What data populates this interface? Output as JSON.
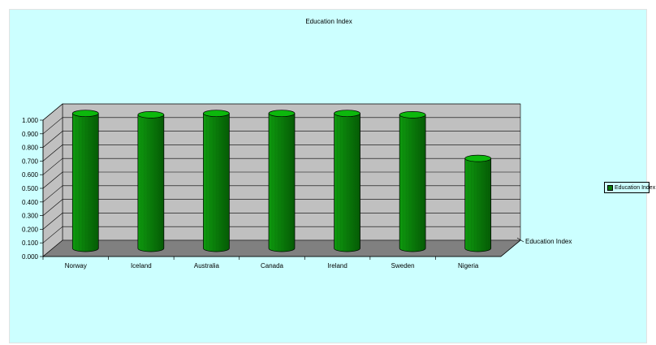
{
  "chart_data": {
    "type": "bar",
    "title": "Education Index",
    "categories": [
      "Norway",
      "Iceland",
      "Australia",
      "Canada",
      "Ireland",
      "Sweden",
      "Nigeria"
    ],
    "series": [
      {
        "name": "Education Index",
        "values": [
          0.99,
          0.98,
          0.99,
          0.99,
          0.99,
          0.98,
          0.66
        ]
      }
    ],
    "depth_axis_label": "Education Index",
    "ylim": [
      0,
      1.0
    ],
    "yticks": [
      "0.000",
      "0.100",
      "0.200",
      "0.300",
      "0.400",
      "0.500",
      "0.600",
      "0.700",
      "0.800",
      "0.900",
      "1.000"
    ],
    "grid": true,
    "legend": "right",
    "colors": {
      "background": "#ccffff",
      "wall": "#c0c0c0",
      "floor": "#808080",
      "bar": "#0a8a0a",
      "bar_top": "#0cb80c"
    }
  }
}
